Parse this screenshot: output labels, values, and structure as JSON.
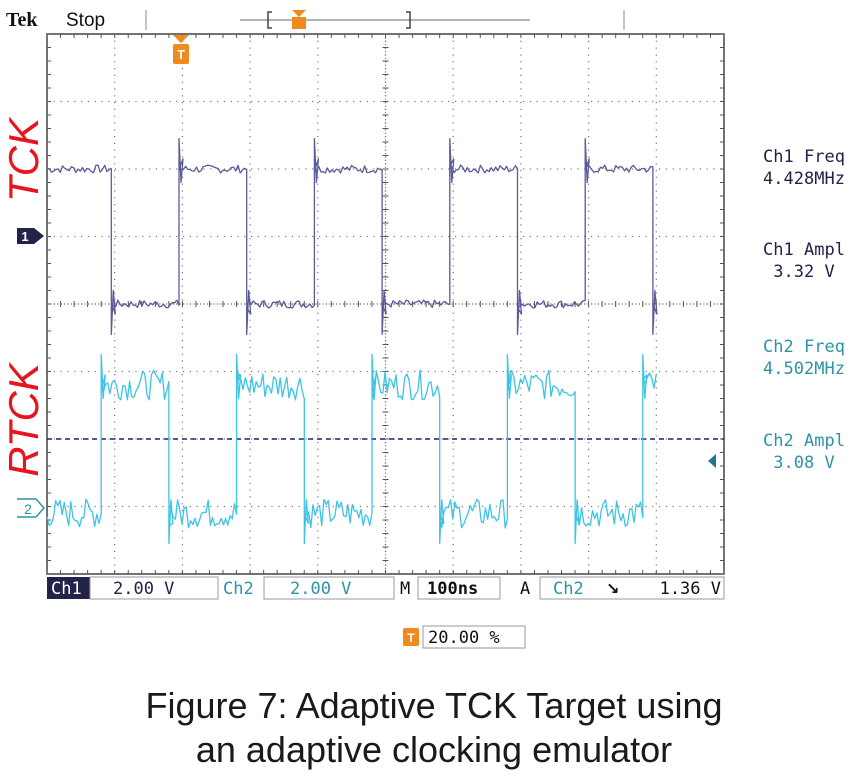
{
  "header": {
    "brand": "Tek",
    "state": "Stop"
  },
  "labels": {
    "trace1": "TCK",
    "trace2": "RTCK"
  },
  "markers": {
    "ch1": "1",
    "ch2": "2",
    "trigger": "T"
  },
  "measurements": [
    {
      "name": "Ch1 Freq",
      "value": "4.428MHz",
      "channel": 1
    },
    {
      "name": "Ch1 Ampl",
      "value": "3.32 V",
      "channel": 1
    },
    {
      "name": "Ch2 Freq",
      "value": "4.502MHz",
      "channel": 2
    },
    {
      "name": "Ch2 Ampl",
      "value": "3.08 V",
      "channel": 2
    }
  ],
  "status_bar": {
    "ch1_label": "Ch1",
    "ch1_scale": "2.00 V",
    "ch2_label": "Ch2",
    "ch2_scale": "2.00 V",
    "m_label": "M",
    "timebase": "100ns",
    "a_label": "A",
    "trigger_source": "Ch2",
    "trigger_slope": "↘",
    "trigger_level": "1.36 V"
  },
  "trigger_position": "20.00 %",
  "caption": {
    "line1": "Figure 7: Adaptive TCK Target using",
    "line2": "an adaptive clocking emulator"
  },
  "colors": {
    "ch1": "#5a5a9a",
    "ch2": "#3cc4e6",
    "label_red": "#e8141e",
    "trigger": "#f08a1e",
    "ch2_text": "#2c94a6",
    "dark": "#22224a"
  },
  "chart_data": {
    "type": "line",
    "x_unit": "div",
    "y_unit": "div",
    "xlim": [
      0,
      10
    ],
    "ylim": [
      0,
      8
    ],
    "grid": true,
    "series": [
      {
        "name": "Ch1",
        "x": [
          0,
          0.95,
          0.95,
          1.95,
          1.95,
          2.95,
          2.95,
          3.95,
          3.95,
          4.95,
          4.95,
          5.95,
          5.95,
          6.95,
          6.95,
          7.95,
          7.95,
          8.95,
          8.95,
          9.0
        ],
        "y": [
          6.0,
          6.0,
          4.0,
          4.0,
          6.0,
          6.0,
          4.0,
          4.0,
          6.0,
          6.0,
          4.0,
          4.0,
          6.0,
          6.0,
          4.0,
          4.0,
          6.0,
          6.0,
          4.0,
          4.0
        ]
      },
      {
        "name": "Ch2",
        "x": [
          0,
          0.8,
          0.8,
          1.8,
          1.8,
          2.8,
          2.8,
          3.8,
          3.8,
          4.8,
          4.8,
          5.8,
          5.8,
          6.8,
          6.8,
          7.8,
          7.8,
          8.8,
          8.8,
          9.0
        ],
        "y": [
          0.9,
          0.9,
          2.8,
          2.8,
          0.9,
          0.9,
          2.8,
          2.8,
          0.9,
          0.9,
          2.8,
          2.8,
          0.9,
          0.9,
          2.8,
          2.8,
          0.9,
          0.9,
          2.8,
          2.8
        ]
      }
    ]
  }
}
